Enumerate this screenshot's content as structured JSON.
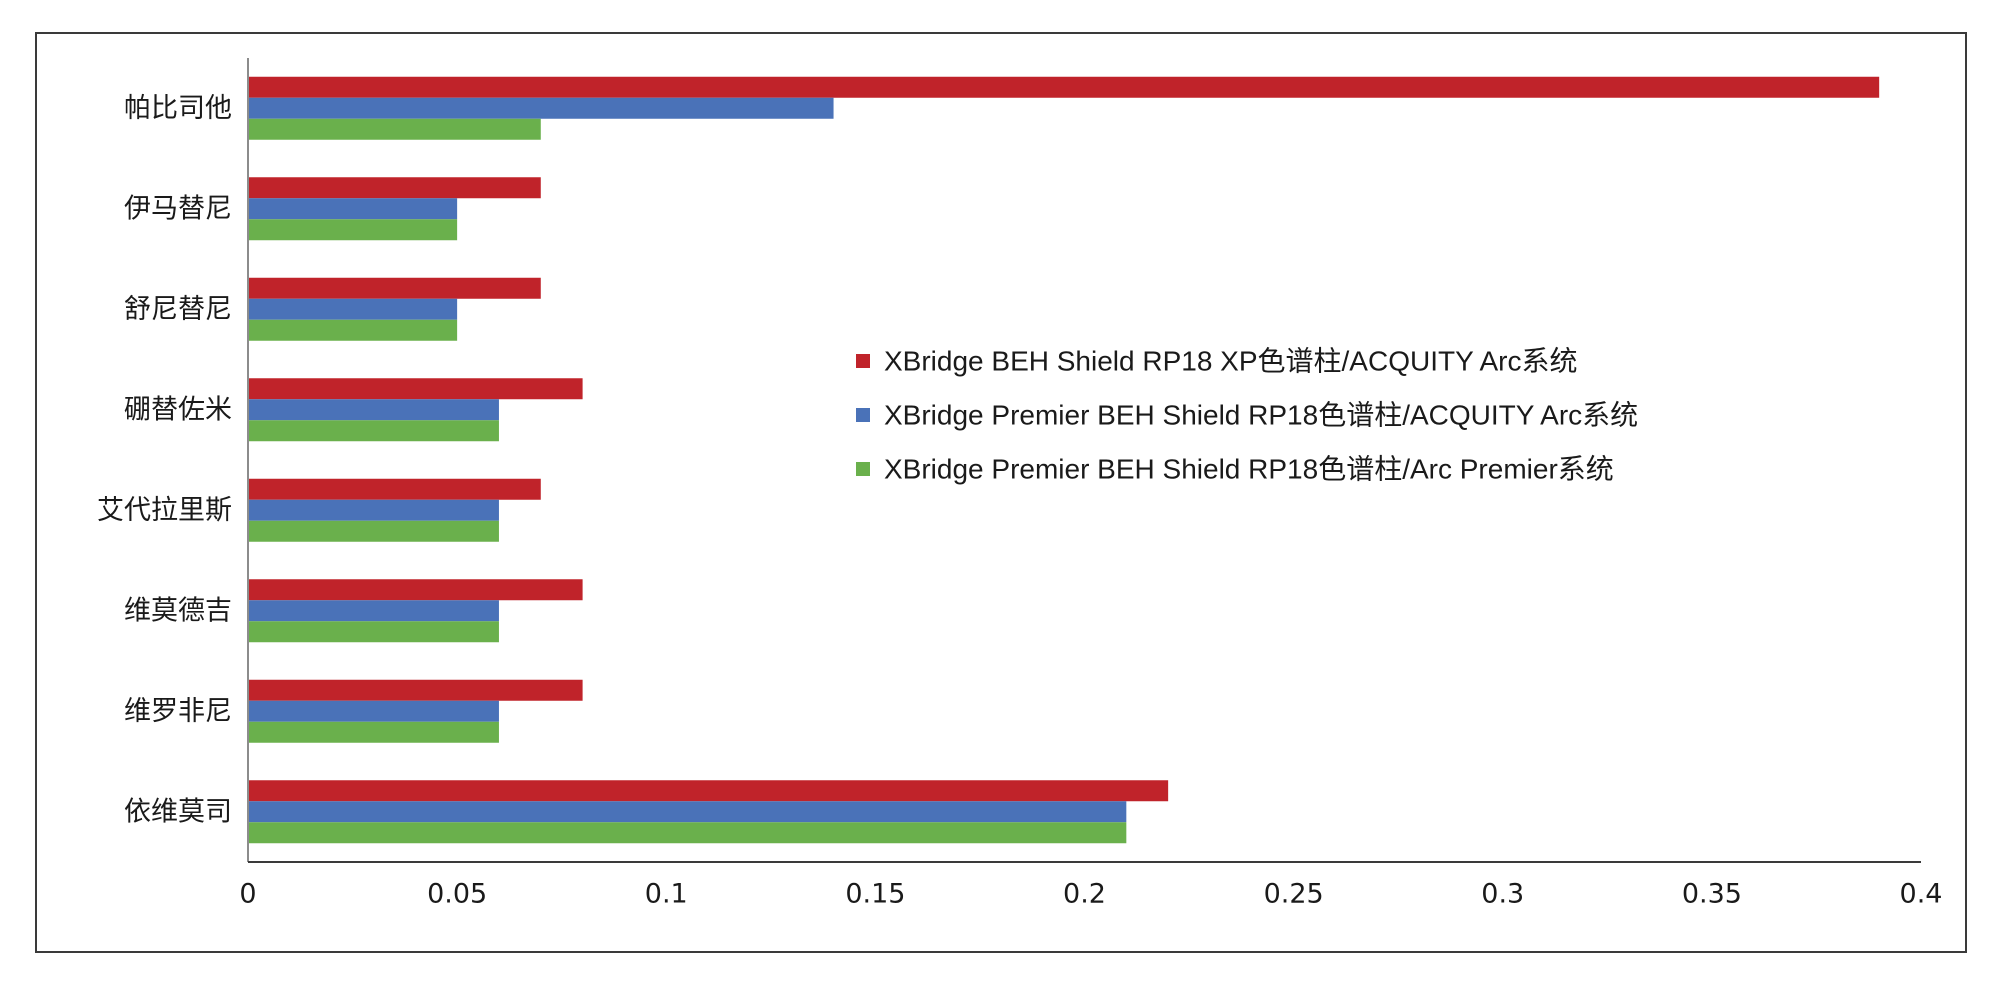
{
  "chart_data": {
    "type": "bar",
    "orientation": "horizontal",
    "categories": [
      "帕比司他",
      "伊马替尼",
      "舒尼替尼",
      "硼替佐米",
      "艾代拉里斯",
      "维莫德吉",
      "维罗非尼",
      "依维莫司"
    ],
    "series": [
      {
        "name": "XBridge BEH Shield RP18 XP色谱柱/ACQUITY Arc系统",
        "color": "#c0232a",
        "values": [
          0.39,
          0.07,
          0.07,
          0.08,
          0.07,
          0.08,
          0.08,
          0.22
        ]
      },
      {
        "name": "XBridge Premier BEH Shield RP18色谱柱/ACQUITY Arc系统",
        "color": "#4a72b8",
        "values": [
          0.14,
          0.05,
          0.05,
          0.06,
          0.06,
          0.06,
          0.06,
          0.21
        ]
      },
      {
        "name": "XBridge Premier BEH Shield RP18色谱柱/Arc Premier系统",
        "color": "#6ab04c",
        "values": [
          0.07,
          0.05,
          0.05,
          0.06,
          0.06,
          0.06,
          0.06,
          0.21
        ]
      }
    ],
    "x_ticks": [
      "0",
      "0.05",
      "0.1",
      "0.15",
      "0.2",
      "0.25",
      "0.3",
      "0.35",
      "0.4"
    ],
    "xlim": [
      0,
      0.4
    ],
    "title": "",
    "xlabel": "",
    "ylabel": "",
    "grid": false,
    "legend_position": "center"
  }
}
